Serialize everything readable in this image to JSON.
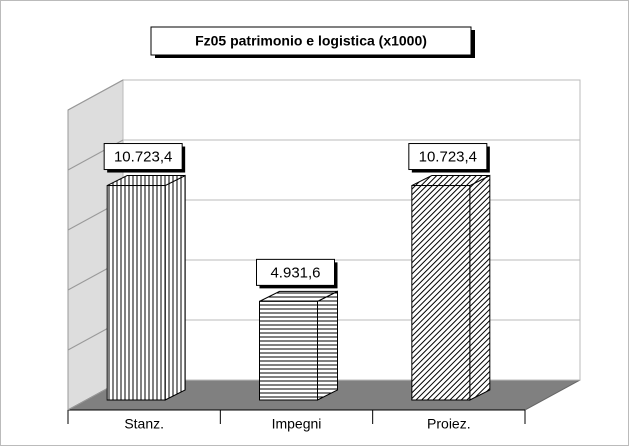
{
  "chart_data": {
    "type": "bar3d",
    "title": "Fz05 patrimonio e logistica (x1000)",
    "categories": [
      "Stanz.",
      "Impegni",
      "Proiez."
    ],
    "values": [
      10723.4,
      4931.6,
      10723.4
    ],
    "value_labels": [
      "10.723,4",
      "4.931,6",
      "10.723,4"
    ],
    "ylim": [
      0,
      15000
    ],
    "yticks": [
      0,
      3000,
      6000,
      9000,
      12000,
      15000
    ],
    "grid": true
  }
}
